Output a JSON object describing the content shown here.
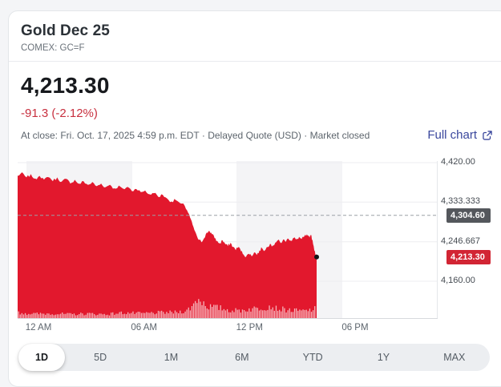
{
  "header": {
    "title": "Gold Dec 25",
    "exchange": "COMEX: GC=F"
  },
  "quote": {
    "price": "4,213.30",
    "change": "-91.3 (-2.12%)",
    "meta": "At close: Fri. Oct. 17, 2025 4:59 p.m. EDT · Delayed Quote (USD) · Market closed",
    "full_chart_label": "Full chart"
  },
  "tabs": {
    "items": [
      "1D",
      "5D",
      "1M",
      "6M",
      "YTD",
      "1Y",
      "MAX"
    ],
    "active": "1D"
  },
  "colors": {
    "trend_red": "#e2182d",
    "volume_tint": "rgba(255,255,255,0.68)",
    "badge_red": "#d22534",
    "badge_gray": "#54575c",
    "change_red": "#c8303f",
    "link_blue": "#3a479d",
    "band_gray": "#f4f4f6",
    "dashed_line": "#9aa0a6",
    "grid_line": "#ededf0"
  },
  "chart_data": {
    "type": "area",
    "title": "Gold Dec 25 (GC=F) intraday 1D chart",
    "x_unit": "hours since 12 AM",
    "session": "12 AM to 4:59 PM EDT",
    "x_ticks": [
      {
        "hour": 0,
        "label": "12 AM"
      },
      {
        "hour": 6,
        "label": "06 AM"
      },
      {
        "hour": 12,
        "label": "12 PM"
      },
      {
        "hour": 18,
        "label": "06 PM"
      }
    ],
    "y_domain": [
      4160,
      4420
    ],
    "y_ticks": [
      {
        "value": 4420,
        "label": "4,420.00"
      },
      {
        "value": 4333.333,
        "label": "4,333.333"
      },
      {
        "value": 4246.667,
        "label": "4,246.667"
      },
      {
        "value": 4160,
        "label": "4,160.00"
      }
    ],
    "previous_close": {
      "value": 4304.6,
      "label": "4,304.60"
    },
    "last": {
      "value": 4213.3,
      "label": "4,213.30"
    },
    "points": [
      [
        0,
        4391
      ],
      [
        0.25,
        4398
      ],
      [
        0.5,
        4387
      ],
      [
        0.75,
        4394
      ],
      [
        1,
        4384
      ],
      [
        1.25,
        4392
      ],
      [
        1.5,
        4382
      ],
      [
        1.75,
        4389
      ],
      [
        2,
        4380
      ],
      [
        2.25,
        4387
      ],
      [
        2.5,
        4378
      ],
      [
        2.75,
        4384
      ],
      [
        3,
        4375
      ],
      [
        3.25,
        4382
      ],
      [
        3.5,
        4373
      ],
      [
        3.75,
        4379
      ],
      [
        4,
        4371
      ],
      [
        4.25,
        4377
      ],
      [
        4.5,
        4368
      ],
      [
        4.75,
        4374
      ],
      [
        5,
        4366
      ],
      [
        5.25,
        4372
      ],
      [
        5.5,
        4363
      ],
      [
        5.75,
        4369
      ],
      [
        6,
        4362
      ],
      [
        6.25,
        4367
      ],
      [
        6.5,
        4358
      ],
      [
        6.75,
        4363
      ],
      [
        7,
        4355
      ],
      [
        7.25,
        4359
      ],
      [
        7.5,
        4350
      ],
      [
        7.75,
        4354
      ],
      [
        8,
        4345
      ],
      [
        8.25,
        4350
      ],
      [
        8.5,
        4341
      ],
      [
        8.75,
        4335
      ],
      [
        9,
        4338
      ],
      [
        9.25,
        4330
      ],
      [
        9.5,
        4326
      ],
      [
        9.7,
        4310
      ],
      [
        9.85,
        4295
      ],
      [
        10,
        4278
      ],
      [
        10.15,
        4263
      ],
      [
        10.3,
        4250
      ],
      [
        10.45,
        4246
      ],
      [
        10.6,
        4255
      ],
      [
        10.75,
        4266
      ],
      [
        10.9,
        4271
      ],
      [
        11.05,
        4263
      ],
      [
        11.2,
        4255
      ],
      [
        11.35,
        4248
      ],
      [
        11.5,
        4243
      ],
      [
        11.65,
        4250
      ],
      [
        11.8,
        4242
      ],
      [
        11.95,
        4237
      ],
      [
        12.1,
        4244
      ],
      [
        12.25,
        4235
      ],
      [
        12.4,
        4229
      ],
      [
        12.55,
        4235
      ],
      [
        12.7,
        4226
      ],
      [
        12.85,
        4219
      ],
      [
        13,
        4214
      ],
      [
        13.15,
        4221
      ],
      [
        13.3,
        4215
      ],
      [
        13.45,
        4224
      ],
      [
        13.6,
        4218
      ],
      [
        13.75,
        4227
      ],
      [
        13.9,
        4233
      ],
      [
        14.05,
        4227
      ],
      [
        14.2,
        4236
      ],
      [
        14.35,
        4243
      ],
      [
        14.5,
        4237
      ],
      [
        14.65,
        4245
      ],
      [
        14.8,
        4250
      ],
      [
        14.95,
        4244
      ],
      [
        15.1,
        4251
      ],
      [
        15.25,
        4247
      ],
      [
        15.4,
        4254
      ],
      [
        15.55,
        4249
      ],
      [
        15.7,
        4255
      ],
      [
        15.85,
        4251
      ],
      [
        16,
        4257
      ],
      [
        16.15,
        4252
      ],
      [
        16.3,
        4258
      ],
      [
        16.45,
        4262
      ],
      [
        16.6,
        4255
      ],
      [
        16.7,
        4261
      ],
      [
        16.8,
        4242
      ],
      [
        16.9,
        4225
      ],
      [
        17,
        4213.3
      ]
    ],
    "volume_rel": [
      [
        0,
        0.3
      ],
      [
        1,
        0.24
      ],
      [
        2,
        0.26
      ],
      [
        3,
        0.22
      ],
      [
        4,
        0.25
      ],
      [
        5,
        0.22
      ],
      [
        6,
        0.3
      ],
      [
        7,
        0.26
      ],
      [
        8,
        0.3
      ],
      [
        9,
        0.32
      ],
      [
        9.6,
        0.4
      ],
      [
        9.9,
        0.6
      ],
      [
        10.2,
        1.0
      ],
      [
        10.5,
        0.8
      ],
      [
        10.8,
        0.6
      ],
      [
        11.2,
        0.55
      ],
      [
        11.6,
        0.5
      ],
      [
        12,
        0.42
      ],
      [
        12.5,
        0.4
      ],
      [
        13,
        0.45
      ],
      [
        13.5,
        0.5
      ],
      [
        14,
        0.55
      ],
      [
        14.3,
        0.62
      ],
      [
        14.7,
        0.5
      ],
      [
        15.2,
        0.44
      ],
      [
        15.7,
        0.4
      ],
      [
        16.2,
        0.38
      ],
      [
        16.6,
        0.42
      ],
      [
        17,
        0.5
      ]
    ]
  }
}
